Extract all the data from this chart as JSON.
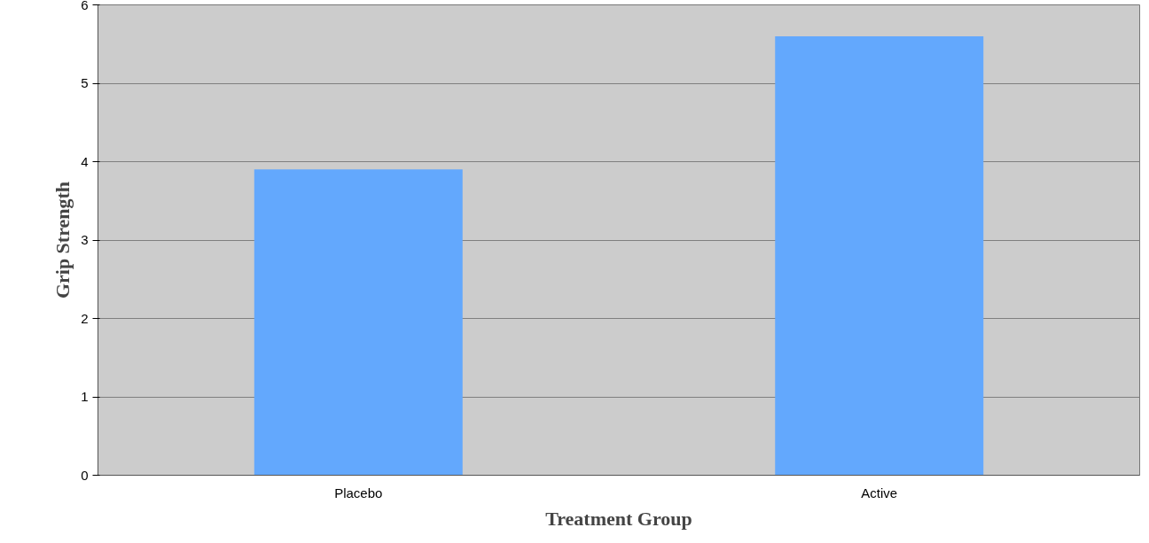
{
  "chart_data": {
    "type": "bar",
    "xlabel": "Treatment Group",
    "ylabel": "Grip Strength",
    "categories": [
      "Placebo",
      "Active"
    ],
    "values": [
      3.9,
      5.6
    ],
    "color": "#63a8fd",
    "ylim": [
      0,
      6
    ],
    "yticks": [
      0,
      1,
      2,
      3,
      4,
      5,
      6
    ],
    "grid": "y"
  }
}
